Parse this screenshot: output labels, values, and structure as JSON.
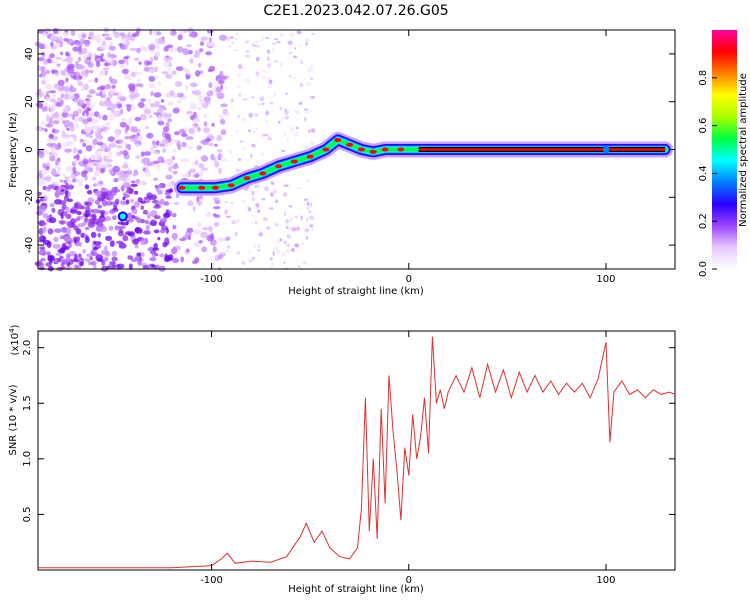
{
  "title": "C2E1.2023.042.07.26.G05",
  "chart_data": [
    {
      "type": "heatmap",
      "xlabel": "Height of straight line (km)",
      "ylabel": "Frequency (Hz)",
      "xlim": [
        -188,
        135
      ],
      "ylim": [
        -50,
        50
      ],
      "xticks": [
        "-100",
        "0",
        "100"
      ],
      "yticks": [
        "-40",
        "-20",
        "0",
        "20",
        "40"
      ],
      "ridge": [
        {
          "x": -115,
          "y": -16
        },
        {
          "x": -105,
          "y": -16
        },
        {
          "x": -98,
          "y": -16
        },
        {
          "x": -90,
          "y": -15
        },
        {
          "x": -82,
          "y": -12
        },
        {
          "x": -74,
          "y": -10
        },
        {
          "x": -66,
          "y": -7
        },
        {
          "x": -58,
          "y": -5
        },
        {
          "x": -50,
          "y": -3
        },
        {
          "x": -42,
          "y": 0
        },
        {
          "x": -36,
          "y": 4
        },
        {
          "x": -30,
          "y": 2
        },
        {
          "x": -24,
          "y": 0
        },
        {
          "x": -18,
          "y": -1
        },
        {
          "x": -12,
          "y": 0
        },
        {
          "x": -4,
          "y": 0
        },
        {
          "x": 5,
          "y": 0
        },
        {
          "x": 130,
          "y": 0
        }
      ],
      "colorbar": {
        "label": "Normalized spectral amplitude",
        "ticks": [
          "0.0",
          "0.2",
          "0.4",
          "0.6",
          "0.8"
        ],
        "colors": [
          "#ffffff",
          "#e9c8ff",
          "#9a44ff",
          "#2a00ff",
          "#0080ff",
          "#00ffff",
          "#00ff40",
          "#aaff00",
          "#ffff00",
          "#ff8000",
          "#ff0000",
          "#ff00a0"
        ]
      }
    },
    {
      "type": "line",
      "xlabel": "Height of straight line (km)",
      "ylabel": "SNR (10 * v/v)",
      "yscale_label": "(x10",
      "yscale_exp": "4",
      "xlim": [
        -188,
        135
      ],
      "ylim": [
        0,
        2.15
      ],
      "xticks": [
        "-100",
        "0",
        "100"
      ],
      "yticks": [
        "0.5",
        "1.0",
        "1.5",
        "2.0"
      ],
      "color": "#e03030",
      "series": [
        {
          "x": [
            -188,
            -120,
            -100,
            -95,
            -92,
            -88,
            -80,
            -70,
            -62,
            -55,
            -52,
            -48,
            -44,
            -40,
            -35,
            -30,
            -26,
            -24,
            -22,
            -20,
            -18,
            -16,
            -14,
            -12,
            -10,
            -8,
            -6,
            -4,
            -2,
            0,
            2,
            4,
            6,
            8,
            10,
            12,
            14,
            16,
            18,
            20,
            24,
            28,
            32,
            36,
            40,
            44,
            48,
            52,
            56,
            60,
            64,
            68,
            72,
            76,
            80,
            84,
            88,
            92,
            96,
            100,
            102,
            104,
            108,
            112,
            116,
            120,
            124,
            128,
            132,
            135
          ],
          "y": [
            0.02,
            0.02,
            0.04,
            0.1,
            0.15,
            0.06,
            0.08,
            0.07,
            0.12,
            0.3,
            0.42,
            0.25,
            0.35,
            0.2,
            0.12,
            0.1,
            0.2,
            0.55,
            1.55,
            0.35,
            1.0,
            0.28,
            1.45,
            0.6,
            1.75,
            1.25,
            0.9,
            0.45,
            1.1,
            0.85,
            1.4,
            1.0,
            1.2,
            1.55,
            1.05,
            2.1,
            1.5,
            1.62,
            1.45,
            1.6,
            1.75,
            1.6,
            1.82,
            1.55,
            1.85,
            1.6,
            1.8,
            1.55,
            1.78,
            1.6,
            1.75,
            1.6,
            1.7,
            1.58,
            1.68,
            1.6,
            1.68,
            1.55,
            1.72,
            2.05,
            1.15,
            1.6,
            1.7,
            1.58,
            1.62,
            1.55,
            1.62,
            1.58,
            1.6,
            1.58
          ]
        }
      ]
    }
  ]
}
